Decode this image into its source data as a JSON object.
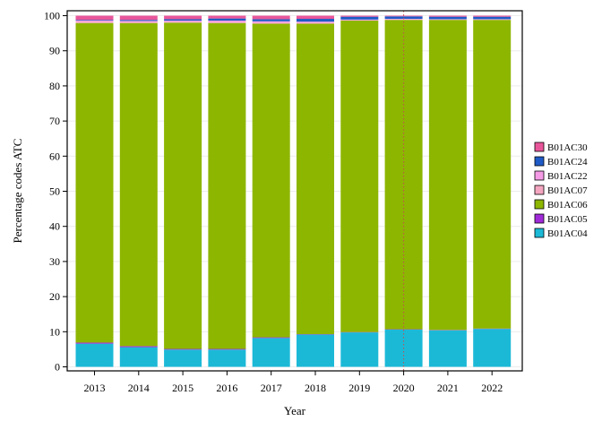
{
  "chart_data": {
    "type": "bar",
    "stacked": true,
    "title": "",
    "xlabel": "Year",
    "ylabel": "Percentage codes ATC",
    "ylim": [
      0,
      100
    ],
    "yticks": [
      0,
      10,
      20,
      30,
      40,
      50,
      60,
      70,
      80,
      90,
      100
    ],
    "grid": true,
    "legend_position": "right",
    "reference_line": {
      "x": "2020",
      "style": "dotted",
      "color": "#c0504d"
    },
    "categories": [
      "2013",
      "2014",
      "2015",
      "2016",
      "2017",
      "2018",
      "2019",
      "2020",
      "2021",
      "2022"
    ],
    "series": [
      {
        "name": "B01AC04",
        "color": "#1cb9d7",
        "values": [
          6.6,
          5.6,
          4.9,
          4.9,
          8.2,
          9.2,
          9.8,
          10.6,
          10.4,
          10.8
        ]
      },
      {
        "name": "B01AC05",
        "color": "#a02ad8",
        "values": [
          0.3,
          0.3,
          0.2,
          0.2,
          0.2,
          0.1,
          0.1,
          0.1,
          0.1,
          0.1
        ]
      },
      {
        "name": "B01AC06",
        "color": "#8db600",
        "values": [
          91.0,
          92.0,
          92.9,
          92.8,
          89.3,
          88.4,
          88.7,
          88.1,
          88.3,
          87.9
        ]
      },
      {
        "name": "B01AC07",
        "color": "#f4a6c0",
        "values": [
          0.4,
          0.3,
          0.3,
          0.3,
          0.3,
          0.3,
          0.1,
          0.1,
          0.1,
          0.1
        ]
      },
      {
        "name": "B01AC22",
        "color": "#f59be6",
        "values": [
          0.3,
          0.3,
          0.3,
          0.4,
          0.4,
          0.3,
          0.2,
          0.2,
          0.1,
          0.1
        ]
      },
      {
        "name": "B01AC24",
        "color": "#1f5bc6",
        "values": [
          0.2,
          0.3,
          0.4,
          0.6,
          0.6,
          0.8,
          0.8,
          0.7,
          0.7,
          0.7
        ]
      },
      {
        "name": "B01AC30",
        "color": "#e8569a",
        "values": [
          1.2,
          1.2,
          1.0,
          0.8,
          1.0,
          0.9,
          0.3,
          0.2,
          0.3,
          0.3
        ]
      }
    ]
  }
}
